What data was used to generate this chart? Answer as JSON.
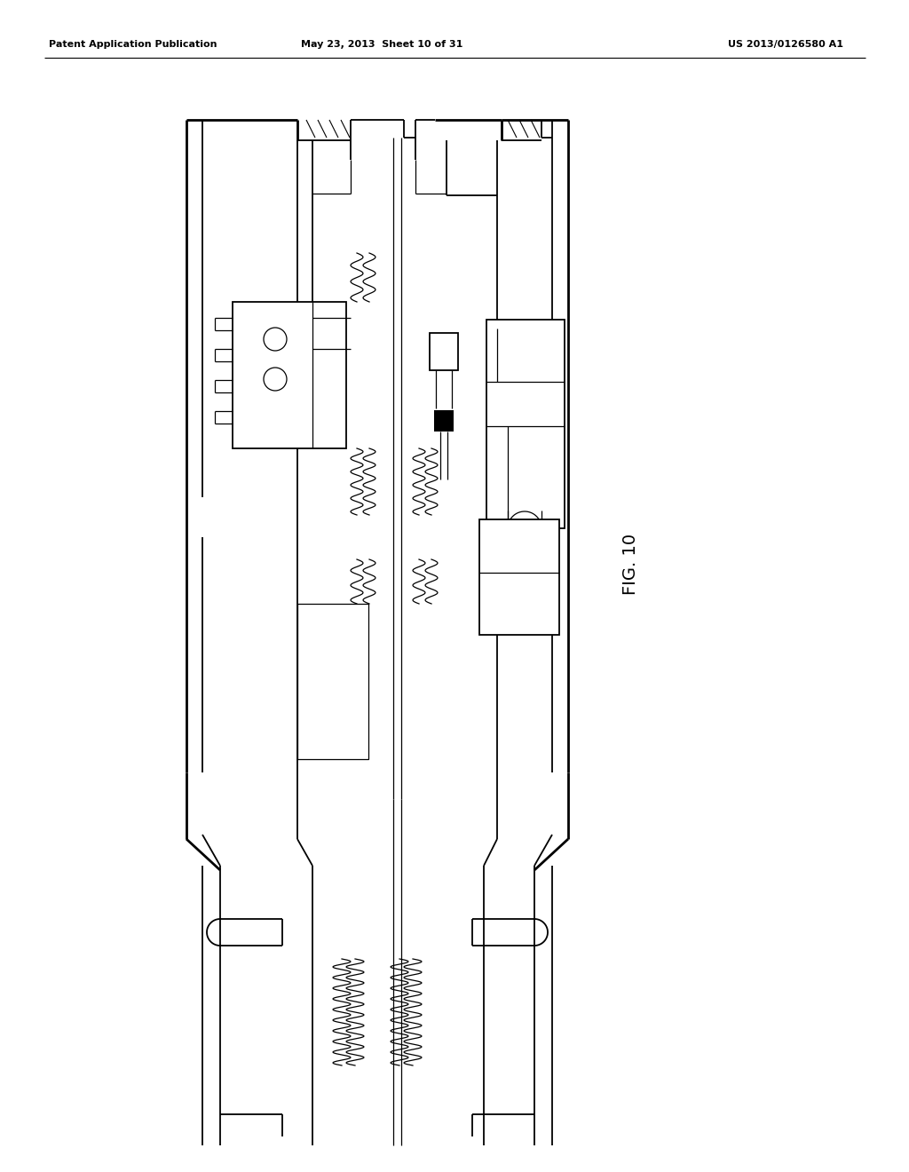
{
  "bg_color": "#ffffff",
  "line_color": "#000000",
  "header_left": "Patent Application Publication",
  "header_mid": "May 23, 2013  Sheet 10 of 31",
  "header_right": "US 2013/0126580 A1",
  "fig_label": "FIG. 10"
}
